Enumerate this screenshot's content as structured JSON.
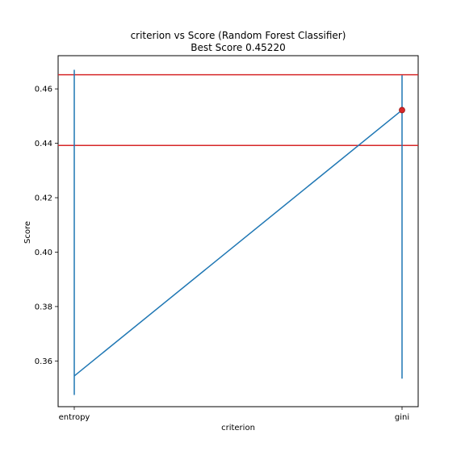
{
  "chart_data": {
    "type": "line",
    "title": "criterion vs Score (Random Forest Classifier)",
    "subtitle": "Best Score 0.45220",
    "xlabel": "criterion",
    "ylabel": "Score",
    "categories": [
      "entropy",
      "gini"
    ],
    "ylim": [
      0.3432,
      0.4722
    ],
    "yticks": [
      0.36,
      0.38,
      0.4,
      0.42,
      0.44,
      0.46
    ],
    "ytick_labels": [
      "0.36",
      "0.38",
      "0.40",
      "0.42",
      "0.44",
      "0.46"
    ],
    "grid": false,
    "series": [
      {
        "values": [
          0.3545,
          0.4522
        ],
        "error_bars": [
          {
            "low": 0.3475,
            "high": 0.467
          },
          {
            "low": 0.3535,
            "high": 0.465
          }
        ],
        "color": "#1f77b4"
      }
    ],
    "best_point": {
      "category": "gini",
      "value": 0.4522,
      "color": "#d62728"
    },
    "hlines": [
      {
        "value": 0.4652,
        "color": "#d62728"
      },
      {
        "value": 0.4392,
        "color": "#d62728"
      }
    ]
  }
}
